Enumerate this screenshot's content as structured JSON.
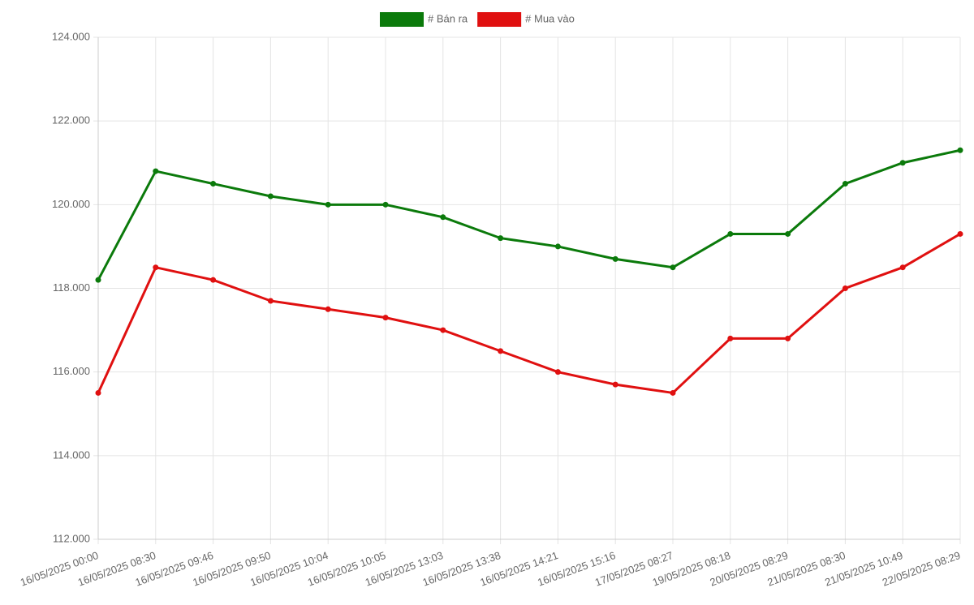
{
  "chart_data": {
    "type": "line",
    "categories": [
      "16/05/2025 00:00",
      "16/05/2025 08:30",
      "16/05/2025 09:46",
      "16/05/2025 09:50",
      "16/05/2025 10:04",
      "16/05/2025 10:05",
      "16/05/2025 13:03",
      "16/05/2025 13:38",
      "16/05/2025 14:21",
      "16/05/2025 15:16",
      "17/05/2025 08:27",
      "19/05/2025 08:18",
      "20/05/2025 08:29",
      "21/05/2025 08:30",
      "21/05/2025 10:49",
      "22/05/2025 08:29"
    ],
    "series": [
      {
        "name": "# Bán ra",
        "color": "#0b7a0b",
        "values": [
          118200,
          120800,
          120500,
          120200,
          120000,
          120000,
          119700,
          119200,
          119000,
          118700,
          118500,
          119300,
          119300,
          120500,
          121000,
          121300
        ]
      },
      {
        "name": "# Mua vào",
        "color": "#e01010",
        "values": [
          115500,
          118500,
          118200,
          117700,
          117500,
          117300,
          117000,
          116500,
          116000,
          115700,
          115500,
          116800,
          116800,
          118000,
          118500,
          119300
        ]
      }
    ],
    "ylim": [
      112000,
      124000
    ],
    "yticks": [
      {
        "value": 112000,
        "label": "112.000"
      },
      {
        "value": 114000,
        "label": "114.000"
      },
      {
        "value": 116000,
        "label": "116.000"
      },
      {
        "value": 118000,
        "label": "118.000"
      },
      {
        "value": 120000,
        "label": "120.000"
      },
      {
        "value": 122000,
        "label": "122.000"
      },
      {
        "value": 124000,
        "label": "124.000"
      }
    ],
    "grid": true,
    "legend": "top"
  }
}
